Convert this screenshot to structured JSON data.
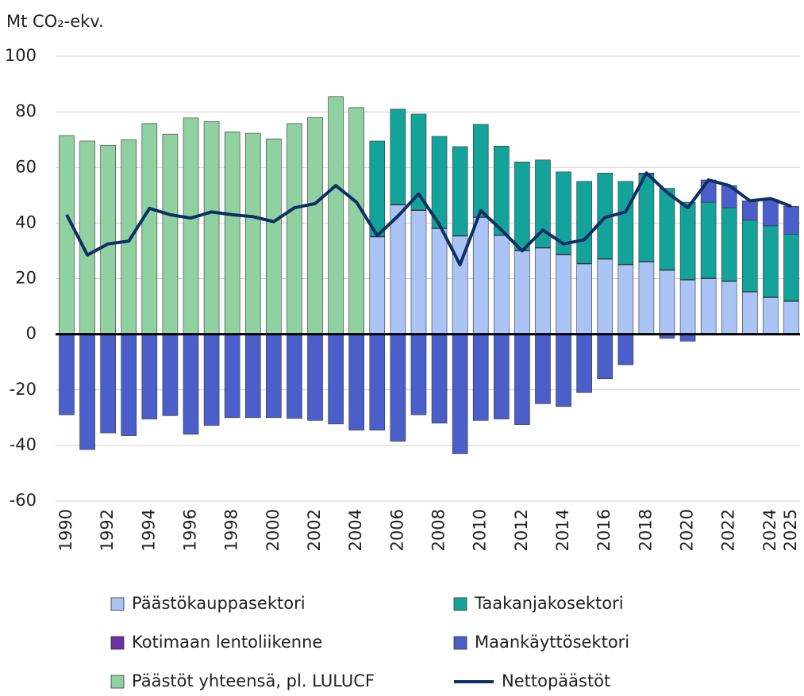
{
  "chart_data": {
    "type": "bar",
    "ylabel": "Mt CO₂-ekv.",
    "categories": [
      "1990",
      null,
      "1992",
      null,
      "1994",
      null,
      "1996",
      null,
      "1998",
      null,
      "2000",
      null,
      "2002",
      null,
      "2004",
      null,
      "2006",
      null,
      "2008",
      null,
      "2010",
      null,
      "2012",
      null,
      "2014",
      null,
      "2016",
      null,
      "2018",
      null,
      "2020",
      null,
      "2022",
      null,
      "2024",
      "2025"
    ],
    "ylim": [
      -60,
      100
    ],
    "yticks": [
      -60,
      -40,
      -20,
      0,
      20,
      40,
      60,
      80,
      100
    ],
    "grid": true,
    "stacked": true,
    "series": [
      {
        "name": "Päästöt yhteensä, pl. LULUCF",
        "type": "bar",
        "color": "#8fd1a0",
        "values": [
          71.5,
          69.5,
          68,
          70,
          75.8,
          72,
          77.8,
          76.5,
          72.8,
          72.3,
          70.3,
          75.8,
          78,
          85.5,
          81.5,
          null,
          null,
          null,
          null,
          null,
          null,
          null,
          null,
          null,
          null,
          null,
          null,
          null,
          null,
          null,
          null,
          null,
          null,
          null,
          null,
          null
        ]
      },
      {
        "name": "Päästökauppasektori",
        "type": "bar",
        "color": "#a9c4f5",
        "values": [
          null,
          null,
          null,
          null,
          null,
          null,
          null,
          null,
          null,
          null,
          null,
          null,
          null,
          null,
          null,
          35,
          46.5,
          44.5,
          38,
          35.3,
          42,
          35.5,
          30,
          31,
          28.5,
          25.3,
          27,
          25,
          26,
          23,
          19.5,
          20,
          19,
          15.2,
          13.2,
          11.8
        ]
      },
      {
        "name": "Kotimaan lentoliikenne",
        "type": "bar",
        "color": "#7030a0",
        "values": [
          null,
          null,
          null,
          null,
          null,
          null,
          null,
          null,
          null,
          null,
          null,
          null,
          null,
          null,
          null,
          0.2,
          0.2,
          0.2,
          0.2,
          0.2,
          0.2,
          0.2,
          0.2,
          0.2,
          0.2,
          0.2,
          0.2,
          0.2,
          0.2,
          0.2,
          0.2,
          0.2,
          0.2,
          0.2,
          0.2,
          0.2
        ]
      },
      {
        "name": "Taakanjakosektori",
        "type": "bar",
        "color": "#14a39a",
        "values": [
          null,
          null,
          null,
          null,
          null,
          null,
          null,
          null,
          null,
          null,
          null,
          null,
          null,
          null,
          null,
          34.3,
          34.3,
          34.5,
          33,
          32,
          33.3,
          32,
          31.8,
          31.5,
          29.7,
          29.5,
          30.8,
          29.8,
          31.3,
          29.3,
          27.8,
          27.3,
          26.3,
          25.6,
          25.6,
          24
        ]
      },
      {
        "name": "Maankäyttösektori",
        "type": "bar",
        "color": "#4a5fc9",
        "values": [
          -29,
          -41.5,
          -35.5,
          -36.5,
          -30.5,
          -29.3,
          -36,
          -32.8,
          -30,
          -30,
          -30,
          -30.3,
          -31,
          -32.3,
          -34.5,
          -34.5,
          -38.5,
          -29,
          -32,
          -43,
          -31,
          -30.5,
          -32.5,
          -25,
          -26,
          -21,
          -16,
          -11,
          0.5,
          -1.5,
          -2.5,
          8,
          8,
          7,
          9.5,
          10
        ]
      },
      {
        "name": "Nettopäästöt",
        "type": "line",
        "color": "#0d2f63",
        "values": [
          43,
          28.5,
          32.5,
          33.5,
          45.3,
          43,
          41.8,
          44,
          43,
          42.3,
          40.5,
          45.5,
          47,
          53.5,
          47.5,
          35.5,
          42.5,
          50.5,
          39.5,
          25,
          44.5,
          37.5,
          30,
          37.5,
          32.5,
          34,
          42,
          44,
          58,
          51,
          45.5,
          55.5,
          53.5,
          48,
          48.8,
          46
        ]
      }
    ]
  }
}
